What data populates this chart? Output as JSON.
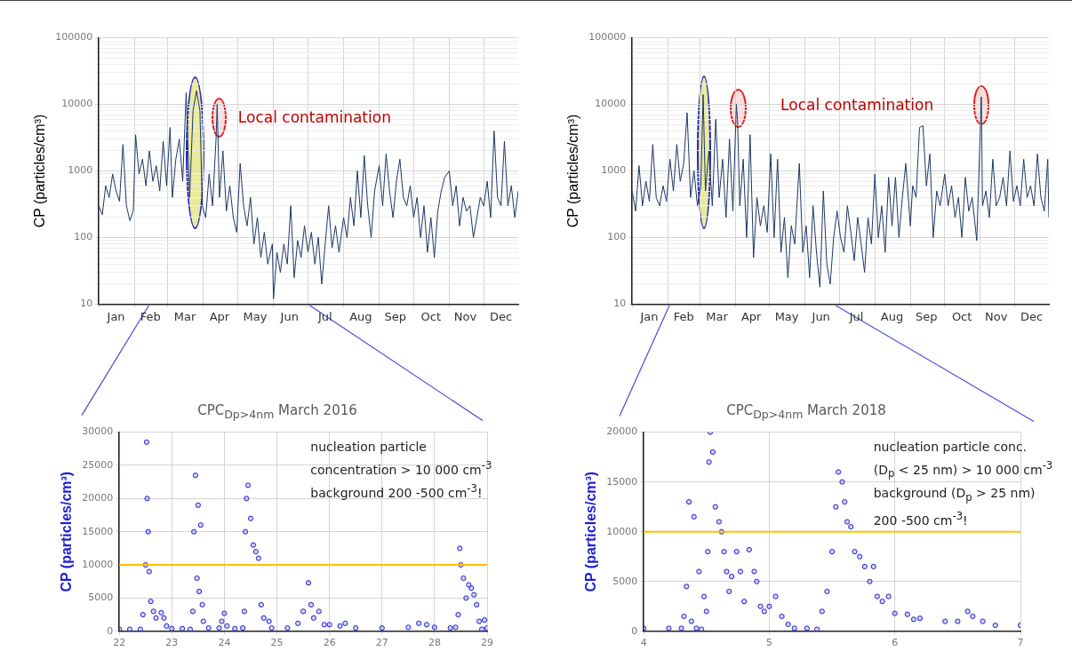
{
  "chart_data": [
    {
      "type": "line",
      "ylabel": "CP (particles/cm³)",
      "color": "#1f3864",
      "log": true,
      "grid": true,
      "annotations": [
        "Local contamination"
      ],
      "xlim": [
        "2016-01-01",
        "2016-12-31"
      ],
      "ylim": [
        10,
        100000
      ],
      "xticks": [
        {
          "value": "2016-01-01",
          "label": null
        },
        {
          "value": "2016-01-16",
          "label": "Jan"
        },
        {
          "value": "2016-02-01",
          "label": null
        },
        {
          "value": "2016-02-15",
          "label": "Feb"
        },
        {
          "value": "2016-03-01",
          "label": null
        },
        {
          "value": "2016-03-16",
          "label": "Mar"
        },
        {
          "value": "2016-04-01",
          "label": null
        },
        {
          "value": "2016-04-15",
          "label": "Apr"
        },
        {
          "value": "2016-05-01",
          "label": null
        },
        {
          "value": "2016-05-16",
          "label": "May"
        },
        {
          "value": "2016-06-01",
          "label": null
        },
        {
          "value": "2016-06-15",
          "label": "Jun"
        },
        {
          "value": "2016-07-01",
          "label": null
        },
        {
          "value": "2016-07-16",
          "label": "Jul"
        },
        {
          "value": "2016-08-01",
          "label": null
        },
        {
          "value": "2016-08-16",
          "label": "Aug"
        },
        {
          "value": "2016-09-01",
          "label": null
        },
        {
          "value": "2016-09-15",
          "label": "Sep"
        },
        {
          "value": "2016-10-01",
          "label": null
        },
        {
          "value": "2016-10-16",
          "label": "Oct"
        },
        {
          "value": "2016-11-01",
          "label": null
        },
        {
          "value": "2016-11-15",
          "label": "Nov"
        },
        {
          "value": "2016-12-01",
          "label": null
        },
        {
          "value": "2016-12-16",
          "label": "Dec"
        }
      ],
      "yticks": [
        10,
        {
          "value": 20,
          "label": null
        },
        {
          "value": 30,
          "label": null
        },
        {
          "value": 40,
          "label": null
        },
        {
          "value": 50,
          "label": null
        },
        {
          "value": 60,
          "label": null
        },
        {
          "value": 70,
          "label": null
        },
        {
          "value": 80,
          "label": null
        },
        {
          "value": 90,
          "label": null
        },
        100,
        {
          "value": 200,
          "label": null
        },
        {
          "value": 300,
          "label": null
        },
        {
          "value": 400,
          "label": null
        },
        {
          "value": 500,
          "label": null
        },
        {
          "value": 600,
          "label": null
        },
        {
          "value": 700,
          "label": null
        },
        {
          "value": 800,
          "label": null
        },
        {
          "value": 900,
          "label": null
        },
        1000,
        {
          "value": 2000,
          "label": null
        },
        {
          "value": 3000,
          "label": null
        },
        {
          "value": 4000,
          "label": null
        },
        {
          "value": 5000,
          "label": null
        },
        {
          "value": 6000,
          "label": null
        },
        {
          "value": 7000,
          "label": null
        },
        {
          "value": 8000,
          "label": null
        },
        {
          "value": 9000,
          "label": null
        },
        10000,
        {
          "value": 20000,
          "label": null
        },
        {
          "value": 30000,
          "label": null
        },
        {
          "value": 40000,
          "label": null
        },
        {
          "value": 50000,
          "label": null
        },
        {
          "value": 60000,
          "label": null
        },
        {
          "value": 70000,
          "label": null
        },
        {
          "value": 80000,
          "label": null
        },
        {
          "value": 90000,
          "label": null
        },
        100000
      ],
      "x": [
        "2016-01-01",
        "2016-01-04",
        "2016-01-07",
        "2016-01-10",
        "2016-01-13",
        "2016-01-16",
        "2016-01-19",
        "2016-01-22",
        "2016-01-25",
        "2016-01-28",
        "2016-01-31",
        "2016-02-02",
        "2016-02-05",
        "2016-02-08",
        "2016-02-11",
        "2016-02-14",
        "2016-02-17",
        "2016-02-20",
        "2016-02-23",
        "2016-02-26",
        "2016-02-29",
        "2016-03-03",
        "2016-03-05",
        "2016-03-08",
        "2016-03-11",
        "2016-03-14",
        "2016-03-17",
        "2016-03-20",
        "2016-03-23",
        "2016-03-26",
        "2016-03-29",
        "2016-03-31",
        "2016-04-03",
        "2016-04-06",
        "2016-04-09",
        "2016-04-12",
        "2016-04-13",
        "2016-04-15",
        "2016-04-18",
        "2016-04-21",
        "2016-04-24",
        "2016-04-27",
        "2016-04-30",
        "2016-05-03",
        "2016-05-06",
        "2016-05-09",
        "2016-05-12",
        "2016-05-15",
        "2016-05-18",
        "2016-05-21",
        "2016-05-24",
        "2016-05-27",
        "2016-05-31",
        "2016-06-01",
        "2016-06-04",
        "2016-06-07",
        "2016-06-10",
        "2016-06-13",
        "2016-06-16",
        "2016-06-19",
        "2016-06-22",
        "2016-06-25",
        "2016-06-28",
        "2016-07-01",
        "2016-07-04",
        "2016-07-07",
        "2016-07-10",
        "2016-07-13",
        "2016-07-16",
        "2016-07-19",
        "2016-07-22",
        "2016-07-25",
        "2016-07-28",
        "2016-08-01",
        "2016-08-04",
        "2016-08-07",
        "2016-08-10",
        "2016-08-13",
        "2016-08-16",
        "2016-08-19",
        "2016-08-22",
        "2016-08-25",
        "2016-08-28",
        "2016-09-01",
        "2016-09-04",
        "2016-09-07",
        "2016-09-10",
        "2016-09-13",
        "2016-09-16",
        "2016-09-19",
        "2016-09-22",
        "2016-09-25",
        "2016-09-28",
        "2016-10-01",
        "2016-10-04",
        "2016-10-07",
        "2016-10-10",
        "2016-10-13",
        "2016-10-16",
        "2016-10-19",
        "2016-10-22",
        "2016-10-25",
        "2016-10-28",
        "2016-11-01",
        "2016-11-04",
        "2016-11-07",
        "2016-11-10",
        "2016-11-13",
        "2016-11-16",
        "2016-11-19",
        "2016-11-22",
        "2016-11-25",
        "2016-11-28",
        "2016-12-01",
        "2016-12-04",
        "2016-12-07",
        "2016-12-10",
        "2016-12-13",
        "2016-12-16",
        "2016-12-19",
        "2016-12-22",
        "2016-12-25",
        "2016-12-28",
        "2016-12-31"
      ],
      "values": [
        300,
        220,
        600,
        400,
        900,
        500,
        350,
        2500,
        300,
        180,
        250,
        3500,
        900,
        1500,
        600,
        2000,
        700,
        1200,
        500,
        2800,
        600,
        4500,
        400,
        1500,
        3000,
        700,
        15000,
        400,
        8000,
        16000,
        8000,
        300,
        200,
        900,
        300,
        3000,
        10000,
        400,
        2000,
        250,
        600,
        200,
        120,
        1300,
        300,
        150,
        400,
        80,
        200,
        50,
        120,
        40,
        80,
        12,
        60,
        30,
        80,
        40,
        300,
        25,
        90,
        50,
        150,
        60,
        120,
        40,
        100,
        20,
        80,
        300,
        70,
        150,
        60,
        200,
        100,
        400,
        150,
        1000,
        200,
        1700,
        300,
        100,
        500,
        1200,
        300,
        1800,
        500,
        200,
        700,
        1500,
        400,
        300,
        600,
        200,
        400,
        100,
        300,
        60,
        200,
        50,
        250,
        500,
        800,
        1000,
        300,
        600,
        150,
        400,
        250,
        300,
        100,
        200,
        400,
        300,
        700,
        200,
        4000,
        400,
        300,
        2800,
        300,
        600,
        200,
        500
      ]
    },
    {
      "type": "line",
      "ylabel": "CP (particles/cm³)",
      "color": "#1f3864",
      "log": true,
      "grid": true,
      "annotations": [
        "Local contamination"
      ],
      "xlim": [
        "2018-01-01",
        "2018-12-31"
      ],
      "ylim": [
        10,
        100000
      ],
      "xticks": [
        {
          "value": "2018-01-01",
          "label": null
        },
        {
          "value": "2018-01-16",
          "label": "Jan"
        },
        {
          "value": "2018-02-01",
          "label": null
        },
        {
          "value": "2018-02-15",
          "label": "Feb"
        },
        {
          "value": "2018-03-01",
          "label": null
        },
        {
          "value": "2018-03-16",
          "label": "Mar"
        },
        {
          "value": "2018-04-01",
          "label": null
        },
        {
          "value": "2018-04-15",
          "label": "Apr"
        },
        {
          "value": "2018-05-01",
          "label": null
        },
        {
          "value": "2018-05-16",
          "label": "May"
        },
        {
          "value": "2018-06-01",
          "label": null
        },
        {
          "value": "2018-06-15",
          "label": "Jun"
        },
        {
          "value": "2018-07-01",
          "label": null
        },
        {
          "value": "2018-07-16",
          "label": "Jul"
        },
        {
          "value": "2018-08-01",
          "label": null
        },
        {
          "value": "2018-08-16",
          "label": "Aug"
        },
        {
          "value": "2018-09-01",
          "label": null
        },
        {
          "value": "2018-09-15",
          "label": "Sep"
        },
        {
          "value": "2018-10-01",
          "label": null
        },
        {
          "value": "2018-10-16",
          "label": "Oct"
        },
        {
          "value": "2018-11-01",
          "label": null
        },
        {
          "value": "2018-11-15",
          "label": "Nov"
        },
        {
          "value": "2018-12-01",
          "label": null
        },
        {
          "value": "2018-12-16",
          "label": "Dec"
        }
      ],
      "yticks": [
        10,
        {
          "value": 20,
          "label": null
        },
        {
          "value": 30,
          "label": null
        },
        {
          "value": 40,
          "label": null
        },
        {
          "value": 50,
          "label": null
        },
        {
          "value": 60,
          "label": null
        },
        {
          "value": 70,
          "label": null
        },
        {
          "value": 80,
          "label": null
        },
        {
          "value": 90,
          "label": null
        },
        100,
        {
          "value": 200,
          "label": null
        },
        {
          "value": 300,
          "label": null
        },
        {
          "value": 400,
          "label": null
        },
        {
          "value": 500,
          "label": null
        },
        {
          "value": 600,
          "label": null
        },
        {
          "value": 700,
          "label": null
        },
        {
          "value": 800,
          "label": null
        },
        {
          "value": 900,
          "label": null
        },
        1000,
        {
          "value": 2000,
          "label": null
        },
        {
          "value": 3000,
          "label": null
        },
        {
          "value": 4000,
          "label": null
        },
        {
          "value": 5000,
          "label": null
        },
        {
          "value": 6000,
          "label": null
        },
        {
          "value": 7000,
          "label": null
        },
        {
          "value": 8000,
          "label": null
        },
        {
          "value": 9000,
          "label": null
        },
        10000,
        {
          "value": 20000,
          "label": null
        },
        {
          "value": 30000,
          "label": null
        },
        {
          "value": 40000,
          "label": null
        },
        {
          "value": 50000,
          "label": null
        },
        {
          "value": 60000,
          "label": null
        },
        {
          "value": 70000,
          "label": null
        },
        {
          "value": 80000,
          "label": null
        },
        {
          "value": 90000,
          "label": null
        },
        100000
      ],
      "x": [
        "2018-01-01",
        "2018-01-04",
        "2018-01-07",
        "2018-01-10",
        "2018-01-13",
        "2018-01-16",
        "2018-01-19",
        "2018-01-22",
        "2018-01-25",
        "2018-01-28",
        "2018-01-31",
        "2018-02-03",
        "2018-02-06",
        "2018-02-09",
        "2018-02-12",
        "2018-02-15",
        "2018-02-18",
        "2018-02-21",
        "2018-02-24",
        "2018-02-27",
        "2018-03-02",
        "2018-03-04",
        "2018-03-06",
        "2018-03-09",
        "2018-03-12",
        "2018-03-15",
        "2018-03-18",
        "2018-03-21",
        "2018-03-24",
        "2018-03-27",
        "2018-03-30",
        "2018-04-02",
        "2018-04-03",
        "2018-04-05",
        "2018-04-08",
        "2018-04-11",
        "2018-04-14",
        "2018-04-17",
        "2018-04-20",
        "2018-04-23",
        "2018-04-26",
        "2018-04-29",
        "2018-05-02",
        "2018-05-05",
        "2018-05-08",
        "2018-05-11",
        "2018-05-14",
        "2018-05-17",
        "2018-05-20",
        "2018-05-23",
        "2018-05-27",
        "2018-05-30",
        "2018-06-02",
        "2018-06-05",
        "2018-06-08",
        "2018-06-11",
        "2018-06-14",
        "2018-06-17",
        "2018-06-20",
        "2018-06-23",
        "2018-06-26",
        "2018-06-29",
        "2018-07-02",
        "2018-07-05",
        "2018-07-08",
        "2018-07-11",
        "2018-07-14",
        "2018-07-17",
        "2018-07-20",
        "2018-07-23",
        "2018-07-26",
        "2018-07-29",
        "2018-08-01",
        "2018-08-04",
        "2018-08-07",
        "2018-08-10",
        "2018-08-13",
        "2018-08-16",
        "2018-08-19",
        "2018-08-22",
        "2018-08-25",
        "2018-08-28",
        "2018-09-01",
        "2018-09-03",
        "2018-09-06",
        "2018-09-09",
        "2018-09-12",
        "2018-09-15",
        "2018-09-18",
        "2018-09-21",
        "2018-09-24",
        "2018-09-27",
        "2018-10-01",
        "2018-10-04",
        "2018-10-07",
        "2018-10-10",
        "2018-10-13",
        "2018-10-16",
        "2018-10-19",
        "2018-10-22",
        "2018-10-25",
        "2018-10-29",
        "2018-11-02",
        "2018-11-03",
        "2018-11-06",
        "2018-11-09",
        "2018-11-12",
        "2018-11-15",
        "2018-11-18",
        "2018-11-21",
        "2018-11-24",
        "2018-11-27",
        "2018-11-30",
        "2018-12-03",
        "2018-12-06",
        "2018-12-09",
        "2018-12-12",
        "2018-12-15",
        "2018-12-18",
        "2018-12-21",
        "2018-12-24",
        "2018-12-27",
        "2018-12-30",
        "2018-12-31"
      ],
      "values": [
        500,
        250,
        1200,
        300,
        700,
        350,
        2500,
        400,
        300,
        600,
        350,
        1500,
        500,
        2500,
        700,
        1300,
        7500,
        400,
        1000,
        300,
        600,
        14000,
        500,
        2000,
        300,
        6000,
        400,
        1500,
        200,
        3000,
        250,
        10000,
        6000,
        300,
        1500,
        100,
        3500,
        50,
        400,
        150,
        300,
        120,
        1800,
        100,
        1500,
        60,
        200,
        25,
        150,
        80,
        1300,
        60,
        150,
        25,
        300,
        60,
        18,
        500,
        40,
        20,
        100,
        250,
        100,
        60,
        300,
        120,
        45,
        200,
        80,
        30,
        200,
        80,
        900,
        100,
        300,
        60,
        800,
        150,
        800,
        100,
        400,
        1300,
        150,
        600,
        400,
        4500,
        4800,
        600,
        1800,
        100,
        500,
        300,
        900,
        300,
        600,
        200,
        400,
        100,
        800,
        250,
        400,
        90,
        13000,
        300,
        500,
        200,
        1500,
        300,
        400,
        800,
        300,
        2000,
        350,
        600,
        300,
        1500,
        400,
        600,
        300,
        1800,
        400,
        250,
        1500,
        200
      ]
    },
    {
      "type": "scatter",
      "title": "CPC$_{Dp>4nm}$ March 2016",
      "ylabel": "CP (particles/cm³)",
      "color": "#1f1fd0",
      "marker": "circle",
      "grid": true,
      "annotations": [
        "nucleation particle",
        "concentration > 10 000 cm$^{-3}$",
        "background  200 -500 cm$^{-3}$!"
      ],
      "ref_lines": [
        {
          "axis": "y",
          "value": 10000,
          "color": "#ffc000"
        }
      ],
      "xlim": [
        22,
        29
      ],
      "xticks": [
        22,
        23,
        24,
        25,
        26,
        27,
        28,
        29
      ],
      "ylim": [
        0,
        30000
      ],
      "yticks": [
        0,
        5000,
        10000,
        15000,
        20000,
        25000,
        30000
      ],
      "x": [
        22.0,
        22.2,
        22.4,
        22.45,
        22.5,
        22.52,
        22.53,
        22.55,
        22.57,
        22.6,
        22.65,
        22.7,
        22.8,
        22.85,
        22.9,
        23.0,
        23.2,
        23.35,
        23.4,
        23.42,
        23.45,
        23.48,
        23.5,
        23.52,
        23.55,
        23.58,
        23.6,
        23.7,
        23.9,
        23.95,
        24.0,
        24.05,
        24.2,
        24.35,
        24.38,
        24.4,
        24.42,
        24.45,
        24.5,
        24.55,
        24.6,
        24.65,
        24.7,
        24.75,
        24.85,
        24.9,
        25.2,
        25.4,
        25.5,
        25.6,
        25.65,
        25.7,
        25.8,
        25.9,
        26.0,
        26.2,
        26.3,
        26.5,
        27.0,
        27.5,
        27.7,
        27.85,
        28.0,
        28.3,
        28.4,
        28.45,
        28.48,
        28.5,
        28.55,
        28.6,
        28.65,
        28.7,
        28.75,
        28.8,
        28.85,
        28.9,
        28.95,
        29.0
      ],
      "values": [
        300,
        300,
        300,
        2500,
        10000,
        28500,
        20000,
        15000,
        9000,
        4500,
        3000,
        2000,
        2800,
        2000,
        800,
        400,
        400,
        300,
        3000,
        15000,
        23500,
        8000,
        19000,
        6000,
        16000,
        4000,
        1500,
        500,
        500,
        1500,
        2700,
        800,
        400,
        500,
        3000,
        15000,
        20000,
        22000,
        17000,
        13000,
        12000,
        11000,
        4000,
        2000,
        1500,
        500,
        500,
        1200,
        3000,
        7300,
        4000,
        2000,
        3000,
        1000,
        1000,
        800,
        1200,
        500,
        500,
        600,
        1200,
        1000,
        600,
        500,
        600,
        2500,
        12500,
        10000,
        8000,
        5000,
        7000,
        6500,
        5500,
        4000,
        1500,
        300,
        1700,
        500
      ]
    },
    {
      "type": "scatter",
      "title": "CPC$_{Dp>4nm}$ March 2018",
      "ylabel": "CP (particles/cm³)",
      "color": "#1f1fd0",
      "marker": "circle",
      "grid": true,
      "annotations": [
        "nucleation particle conc.",
        "(D$_{p}$ < 25 nm) > 10 000 cm$^{-3}$",
        "background (D$_{p}$ > 25 nm)",
        "200 -500 cm$^{-3}$!"
      ],
      "ref_lines": [
        {
          "axis": "y",
          "value": 10000,
          "color": "#ffc000"
        }
      ],
      "xlim": [
        4,
        7
      ],
      "xticks": [
        4,
        5,
        6,
        7
      ],
      "ylim": [
        0,
        20000
      ],
      "yticks": [
        0,
        5000,
        10000,
        15000,
        20000
      ],
      "x": [
        4.0,
        4.2,
        4.3,
        4.32,
        4.34,
        4.36,
        4.38,
        4.4,
        4.42,
        4.44,
        4.46,
        4.48,
        4.5,
        4.51,
        4.52,
        4.53,
        4.55,
        4.57,
        4.6,
        4.62,
        4.64,
        4.66,
        4.68,
        4.7,
        4.74,
        4.77,
        4.8,
        4.84,
        4.88,
        4.9,
        4.93,
        4.96,
        5.0,
        5.05,
        5.1,
        5.15,
        5.2,
        5.3,
        5.38,
        5.42,
        5.46,
        5.5,
        5.53,
        5.55,
        5.58,
        5.6,
        5.62,
        5.65,
        5.68,
        5.72,
        5.76,
        5.8,
        5.83,
        5.86,
        5.9,
        5.95,
        6.0,
        6.1,
        6.15,
        6.2,
        6.4,
        6.5,
        6.58,
        6.62,
        6.7,
        6.8,
        7.0
      ],
      "values": [
        300,
        300,
        300,
        1500,
        4500,
        13000,
        1000,
        11500,
        300,
        6000,
        200,
        3500,
        2000,
        8000,
        17000,
        20000,
        18000,
        12500,
        11000,
        10000,
        8000,
        6000,
        4000,
        5500,
        8000,
        6000,
        3000,
        8200,
        6000,
        5000,
        2500,
        2000,
        2500,
        3500,
        1500,
        700,
        300,
        300,
        200,
        2000,
        4000,
        8000,
        12500,
        16000,
        15000,
        13000,
        11000,
        10500,
        8000,
        7500,
        6500,
        5000,
        6500,
        3500,
        3000,
        3500,
        1800,
        1700,
        1200,
        1300,
        1000,
        1000,
        2000,
        1500,
        1000,
        600,
        600
      ]
    }
  ]
}
